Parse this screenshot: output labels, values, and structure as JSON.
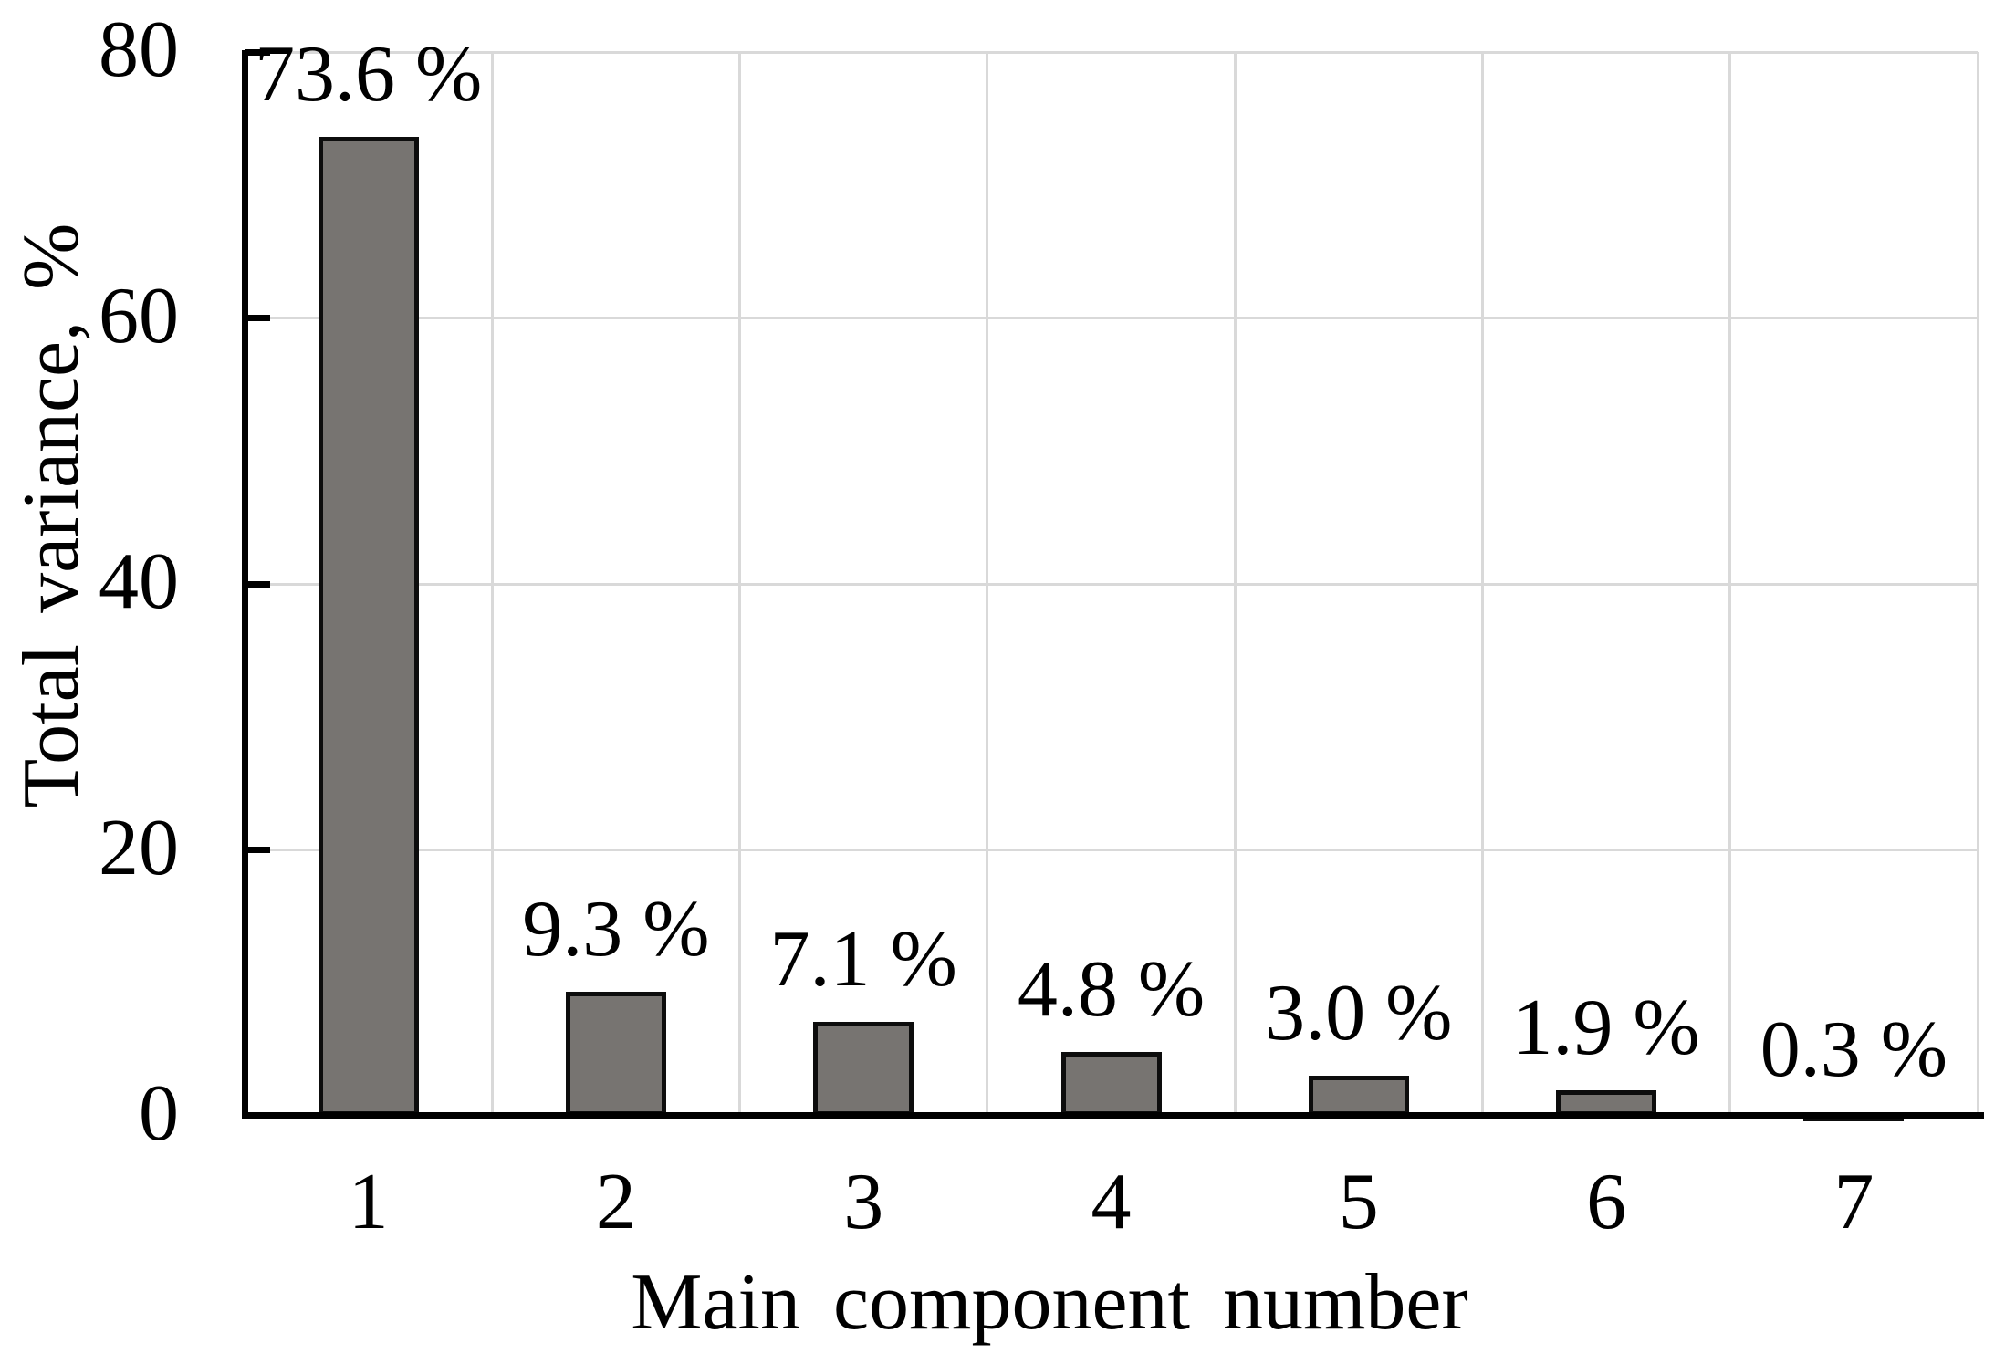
{
  "chart_data": {
    "type": "bar",
    "title": "",
    "categories": [
      "1",
      "2",
      "3",
      "4",
      "5",
      "6",
      "7"
    ],
    "values": [
      73.6,
      9.3,
      7.1,
      4.8,
      3.0,
      1.9,
      0.3
    ],
    "data_labels": [
      "73.6 %",
      "9.3 %",
      "7.1 %",
      "4.8 %",
      "3.0 %",
      "1.9 %",
      "0.3 %"
    ],
    "xlabel": "Main component number",
    "ylabel": "Total variance, %",
    "ylim": [
      0,
      80
    ],
    "yticks": [
      0,
      20,
      40,
      60,
      80
    ],
    "ytick_labels": [
      "0",
      "20",
      "40",
      "60",
      "80"
    ],
    "grid": "both",
    "legend": "none",
    "colors": {
      "bar_fill": "#777471",
      "bar_border": "#0d0d0d",
      "gridline": "#d9d9d9",
      "axis": "#000000",
      "text": "#000000",
      "background": "#ffffff"
    }
  }
}
